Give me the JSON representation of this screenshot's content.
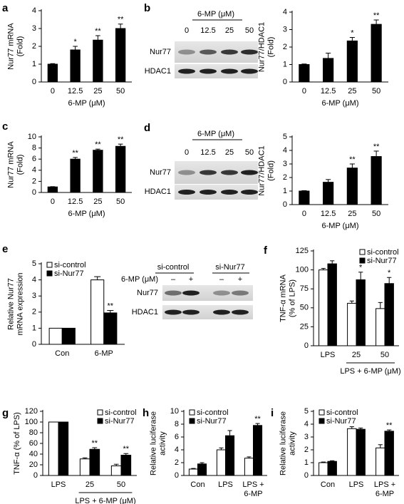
{
  "chart_data": [
    {
      "type": "bar",
      "panel": "a",
      "ylabel": "Nur77 mRNA\n(Fold)",
      "xlabel": "6-MP (μM)",
      "categories": [
        "0",
        "12.5",
        "25",
        "50"
      ],
      "series": [
        {
          "color": "#000000",
          "values": [
            1,
            1.8,
            2.35,
            3.0
          ],
          "errors": [
            0.03,
            0.2,
            0.25,
            0.25
          ],
          "annotations": [
            null,
            "*",
            "**",
            "**"
          ]
        }
      ],
      "ylim": [
        0,
        4
      ],
      "yticks": [
        0,
        1,
        2,
        3,
        4
      ]
    },
    {
      "type": "bar",
      "ylabel": "Nur77/HDAC1\n(Fold)",
      "xlabel": "6-MP (μM)",
      "categories": [
        "0",
        "12.5",
        "25",
        "50"
      ],
      "series": [
        {
          "color": "#000000",
          "values": [
            1,
            1.35,
            2.35,
            3.3
          ],
          "errors": [
            0.03,
            0.3,
            0.2,
            0.25
          ],
          "annotations": [
            null,
            null,
            "*",
            "**"
          ]
        }
      ],
      "ylim": [
        0,
        4
      ],
      "yticks": [
        0,
        1,
        2,
        3,
        4
      ]
    },
    {
      "type": "bar",
      "panel": "c",
      "ylabel": "Nur77 mRNA\n(Fold)",
      "xlabel": "6-MP (μM)",
      "categories": [
        "0",
        "12.5",
        "25",
        "50"
      ],
      "series": [
        {
          "color": "#000000",
          "values": [
            1,
            6.0,
            7.6,
            8.3
          ],
          "errors": [
            0.05,
            0.3,
            0.2,
            0.4
          ],
          "annotations": [
            null,
            "**",
            "**",
            "**"
          ]
        }
      ],
      "ylim": [
        0,
        10
      ],
      "yticks": [
        0,
        2,
        4,
        6,
        8,
        10
      ]
    },
    {
      "type": "bar",
      "ylabel": "Nur77/HDAC1\n(Fold)",
      "xlabel": "6-MP (μM)",
      "categories": [
        "0",
        "12.5",
        "25",
        "50"
      ],
      "series": [
        {
          "color": "#000000",
          "values": [
            1,
            1.65,
            2.7,
            3.55
          ],
          "errors": [
            0.03,
            0.2,
            0.3,
            0.4
          ],
          "annotations": [
            null,
            null,
            "**",
            "**"
          ]
        }
      ],
      "ylim": [
        0,
        5
      ],
      "yticks": [
        0,
        1,
        2,
        3,
        4,
        5
      ]
    },
    {
      "type": "bar",
      "panel": "e",
      "ylabel": "Relative Nur77\nmRNA expression",
      "categories": [
        "Con",
        "6-MP"
      ],
      "legend": "upper left",
      "series": [
        {
          "name": "si-control",
          "color": "#ffffff",
          "values": [
            1,
            4.0
          ],
          "errors": [
            0,
            0.2
          ],
          "annotations": [
            null,
            null
          ]
        },
        {
          "name": "si-Nur77",
          "color": "#000000",
          "values": [
            1,
            1.95
          ],
          "errors": [
            0,
            0.15
          ],
          "annotations": [
            null,
            "**"
          ]
        }
      ],
      "ylim": [
        0,
        5
      ],
      "yticks": [
        0,
        1,
        2,
        3,
        4,
        5
      ]
    },
    {
      "type": "bar",
      "panel": "f",
      "ylabel": "TNF-α mRNA\n(% of LPS)",
      "xlabel": "LPS + 6-MP (μM)",
      "categories": [
        "LPS",
        "25",
        "50"
      ],
      "legend": "upper right",
      "series": [
        {
          "name": "si-control",
          "color": "#ffffff",
          "values": [
            100,
            56,
            49
          ],
          "errors": [
            2,
            3,
            8
          ],
          "annotations": [
            null,
            null,
            null
          ]
        },
        {
          "name": "si-Nur77",
          "color": "#000000",
          "values": [
            108,
            87,
            82
          ],
          "errors": [
            4,
            10,
            8
          ],
          "annotations": [
            null,
            "*",
            "*"
          ]
        }
      ],
      "ylim": [
        0,
        125
      ],
      "yticks": [
        0,
        25,
        50,
        75,
        100,
        125
      ]
    },
    {
      "type": "bar",
      "panel": "g",
      "ylabel": "TNF-α (% of LPS)",
      "xlabel": "LPS + 6-MP (μM)",
      "categories": [
        "LPS",
        "25",
        "50"
      ],
      "legend": "upper right",
      "series": [
        {
          "name": "si-control",
          "color": "#ffffff",
          "values": [
            100,
            31,
            18
          ],
          "errors": [
            0,
            2,
            3
          ],
          "annotations": [
            null,
            null,
            null
          ]
        },
        {
          "name": "si-Nur77",
          "color": "#000000",
          "values": [
            100,
            49,
            38
          ],
          "errors": [
            0,
            3,
            3
          ],
          "annotations": [
            null,
            "**",
            "**"
          ]
        }
      ],
      "ylim": [
        0,
        120
      ],
      "yticks": [
        0,
        20,
        40,
        60,
        80,
        100,
        120
      ]
    },
    {
      "type": "bar",
      "panel": "h",
      "ylabel": "Relative luciferase\nactivity",
      "categories": [
        "Con",
        "LPS",
        "LPS +\n6-MP"
      ],
      "legend": "upper left",
      "series": [
        {
          "name": "si-control",
          "color": "#ffffff",
          "values": [
            1.0,
            4.0,
            2.7
          ],
          "errors": [
            0.1,
            0.3,
            0.2
          ],
          "annotations": [
            null,
            null,
            null
          ]
        },
        {
          "name": "si-Nur77",
          "color": "#000000",
          "values": [
            1.8,
            6.2,
            7.8
          ],
          "errors": [
            0.2,
            0.8,
            0.3
          ],
          "annotations": [
            null,
            null,
            "**"
          ]
        }
      ],
      "ylim": [
        0,
        10
      ],
      "yticks": [
        0,
        2,
        4,
        6,
        8,
        10
      ]
    },
    {
      "type": "bar",
      "panel": "i",
      "ylabel": "Relative luciferase\nactivity",
      "categories": [
        "Con",
        "LPS",
        "LPS +\n6-MP"
      ],
      "legend": "upper left",
      "series": [
        {
          "name": "si-control",
          "color": "#ffffff",
          "values": [
            1.0,
            3.65,
            2.15
          ],
          "errors": [
            0.05,
            0.15,
            0.25
          ],
          "annotations": [
            null,
            null,
            null
          ]
        },
        {
          "name": "si-Nur77",
          "color": "#000000",
          "values": [
            1.1,
            3.6,
            3.45
          ],
          "errors": [
            0.05,
            0.1,
            0.1
          ],
          "annotations": [
            null,
            null,
            "**"
          ]
        }
      ],
      "ylim": [
        0,
        5
      ],
      "yticks": [
        0,
        1,
        2,
        3,
        4,
        5
      ]
    }
  ],
  "blots": [
    {
      "panel": "b",
      "header": "6-MP (μM)",
      "lanes": [
        "0",
        "12.5",
        "25",
        "50"
      ],
      "rows": [
        "Nur77",
        "HDAC1"
      ]
    },
    {
      "panel": "d",
      "header": "6-MP (μM)",
      "lanes": [
        "0",
        "12.5",
        "25",
        "50"
      ],
      "rows": [
        "Nur77",
        "HDAC1"
      ]
    },
    {
      "groups": [
        "si-control",
        "si-Nur77"
      ],
      "treatment": "6-MP (μM)",
      "lanes": [
        "–",
        "+",
        "–",
        "+"
      ],
      "rows": [
        "Nur77",
        "HDAC1"
      ]
    }
  ]
}
